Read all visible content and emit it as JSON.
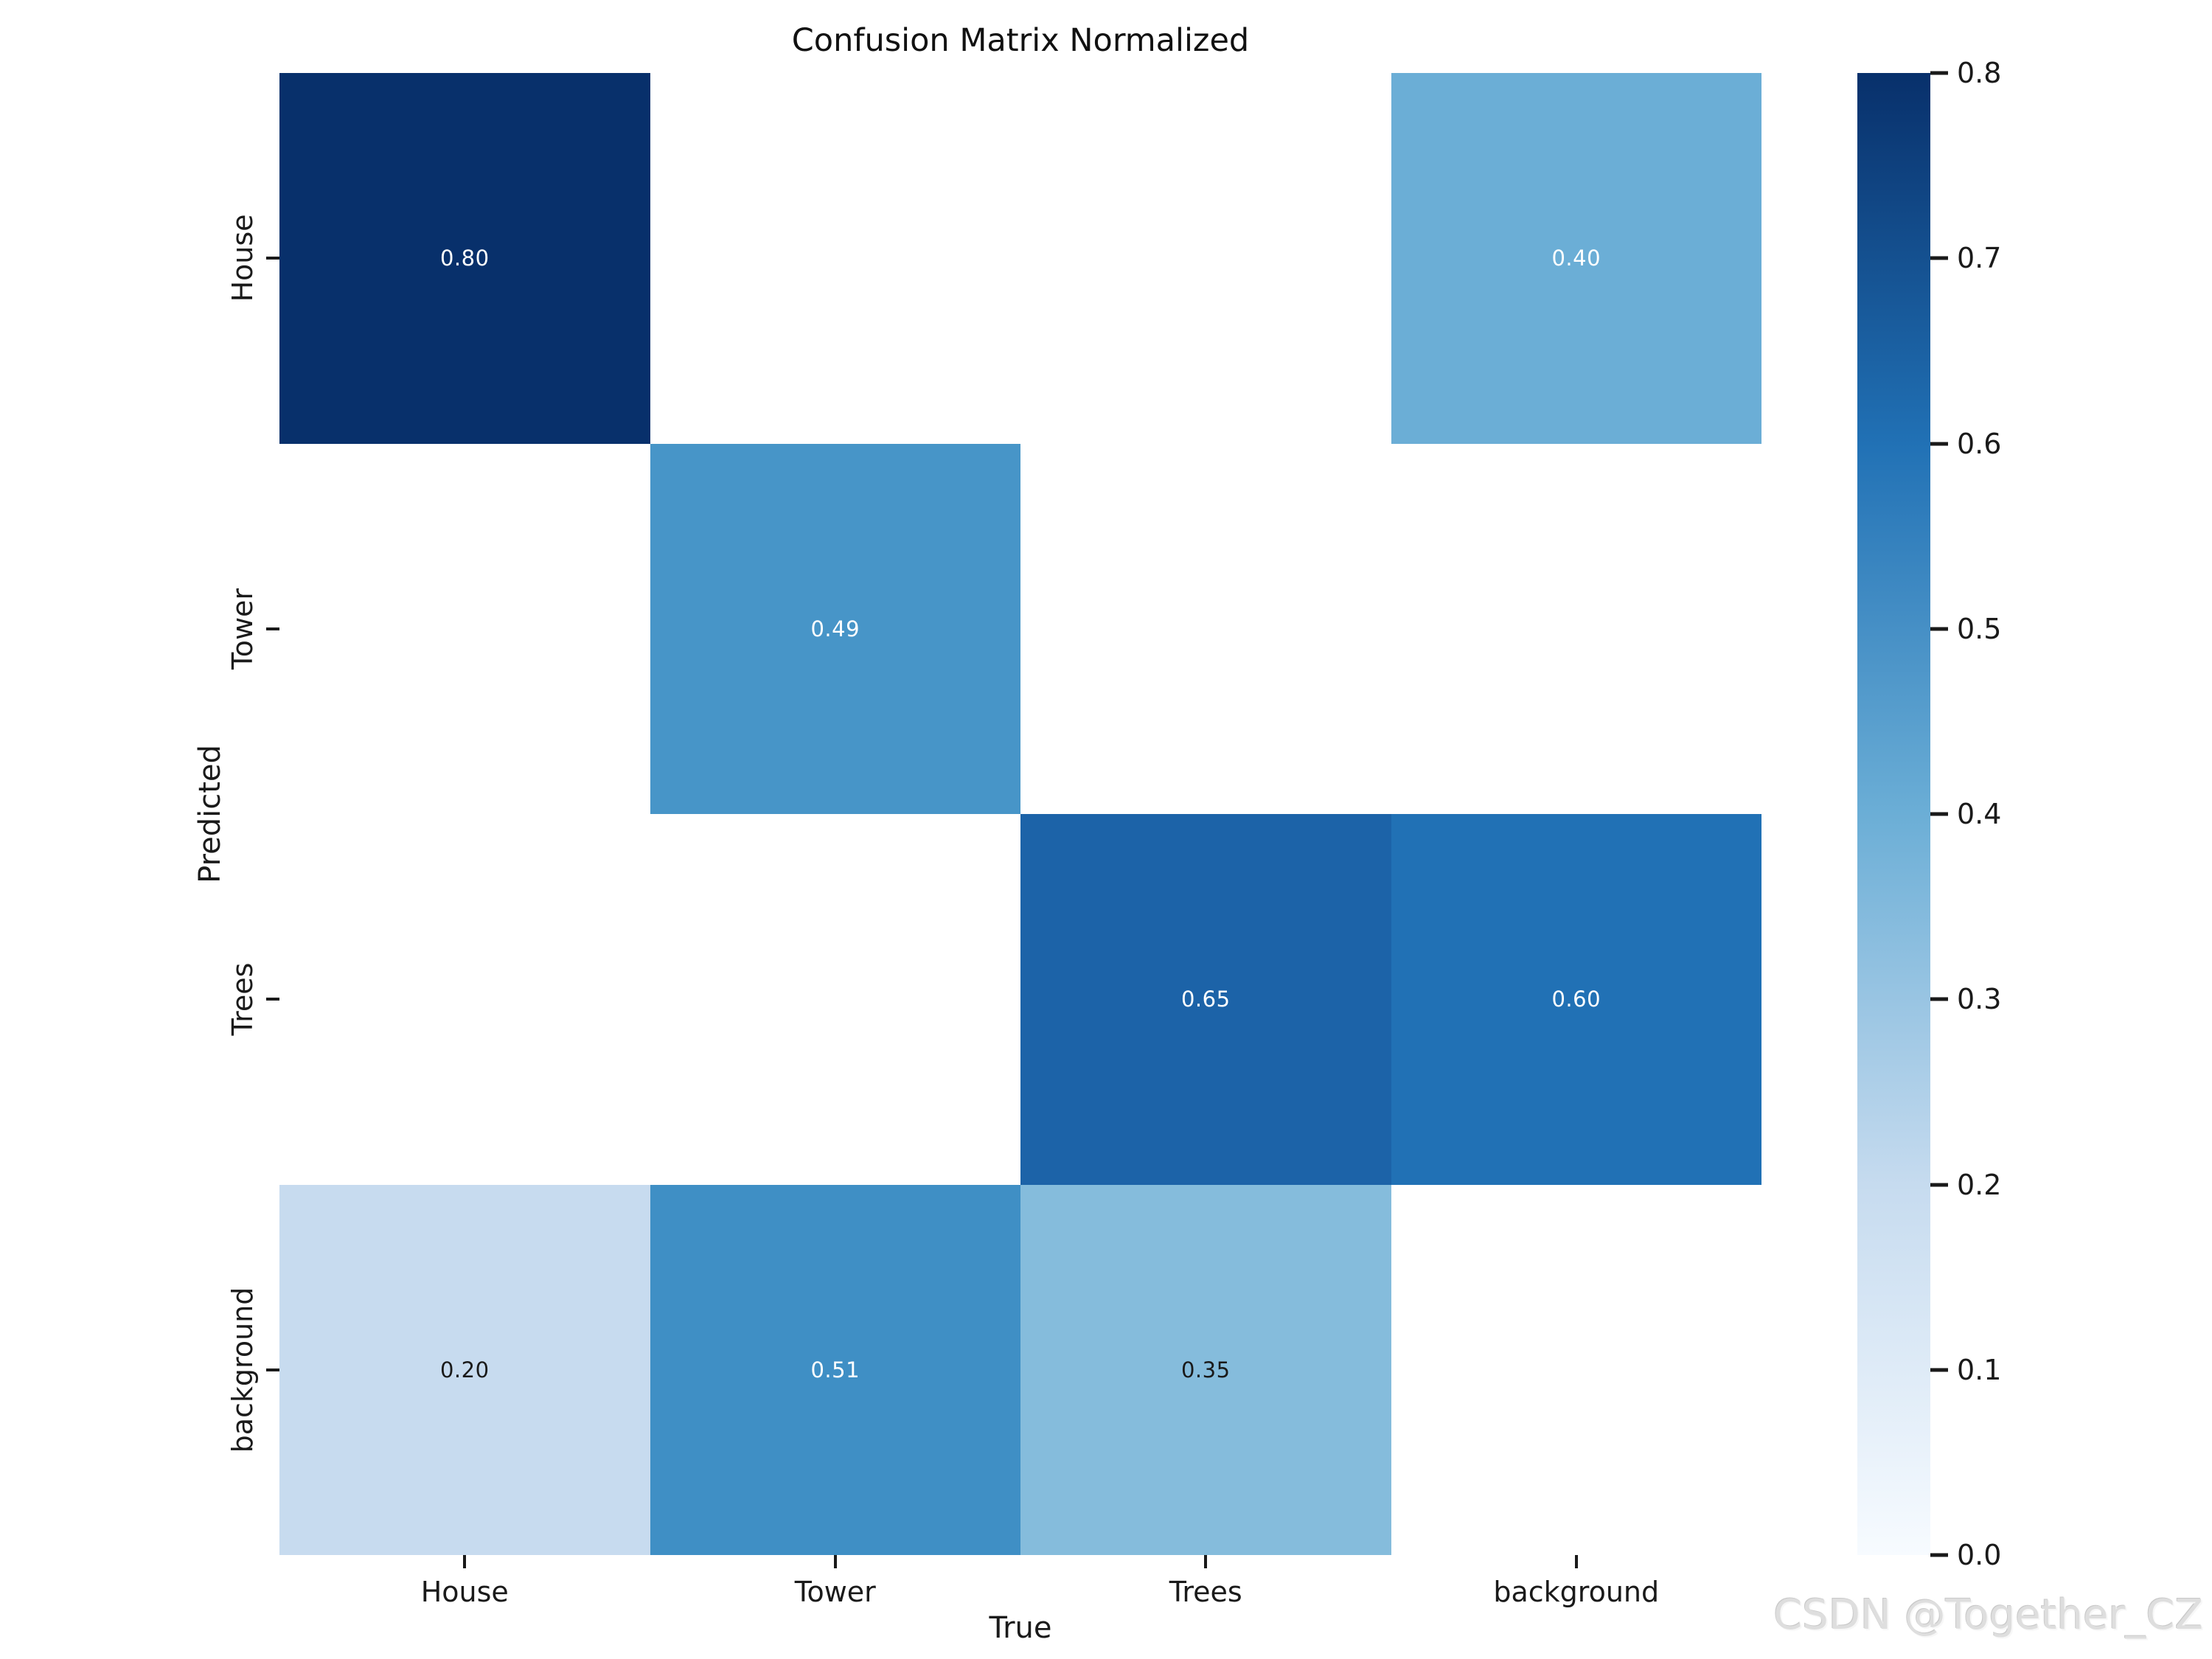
{
  "watermark": "CSDN @Together_CZ",
  "chart_data": {
    "type": "heatmap",
    "title": "Confusion Matrix Normalized",
    "xlabel": "True",
    "ylabel": "Predicted",
    "x_categories": [
      "House",
      "Tower",
      "Trees",
      "background"
    ],
    "y_categories": [
      "House",
      "Tower",
      "Trees",
      "background"
    ],
    "matrix": [
      [
        0.8,
        0.0,
        0.0,
        0.4
      ],
      [
        0.0,
        0.49,
        0.0,
        0.0
      ],
      [
        0.0,
        0.0,
        0.65,
        0.6
      ],
      [
        0.2,
        0.51,
        0.35,
        0.0
      ]
    ],
    "annotated_cells": [
      {
        "row": "House",
        "col": "House",
        "label": "0.80",
        "value": 0.8,
        "bg": "#08306b",
        "fg": "#ffffff"
      },
      {
        "row": "House",
        "col": "background",
        "label": "0.40",
        "value": 0.4,
        "bg": "#6baed6",
        "fg": "#ffffff"
      },
      {
        "row": "Tower",
        "col": "Tower",
        "label": "0.49",
        "value": 0.49,
        "bg": "#4795c8",
        "fg": "#ffffff"
      },
      {
        "row": "Trees",
        "col": "Trees",
        "label": "0.65",
        "value": 0.65,
        "bg": "#1c63a8",
        "fg": "#ffffff"
      },
      {
        "row": "Trees",
        "col": "background",
        "label": "0.60",
        "value": 0.6,
        "bg": "#2171b5",
        "fg": "#ffffff"
      },
      {
        "row": "background",
        "col": "House",
        "label": "0.20",
        "value": 0.2,
        "bg": "#c7dbef",
        "fg": "#1a1a1a"
      },
      {
        "row": "background",
        "col": "Tower",
        "label": "0.51",
        "value": 0.51,
        "bg": "#3f8fc5",
        "fg": "#ffffff"
      },
      {
        "row": "background",
        "col": "Trees",
        "label": "0.35",
        "value": 0.35,
        "bg": "#85bcdc",
        "fg": "#1a1a1a"
      }
    ],
    "empty_cell_color": "#ffffff",
    "colormap": "Blues",
    "colormap_stops": [
      "#f7fbff",
      "#c6dbef",
      "#6baed6",
      "#2171b5",
      "#08306b"
    ],
    "vmin": 0.0,
    "vmax": 0.8,
    "colorbar_ticks": [
      0.0,
      0.1,
      0.2,
      0.3,
      0.4,
      0.5,
      0.6,
      0.7,
      0.8
    ],
    "colorbar_tick_labels": [
      "0.0",
      "0.1",
      "0.2",
      "0.3",
      "0.4",
      "0.5",
      "0.6",
      "0.7",
      "0.8"
    ],
    "legend_position": "right",
    "grid": false
  }
}
